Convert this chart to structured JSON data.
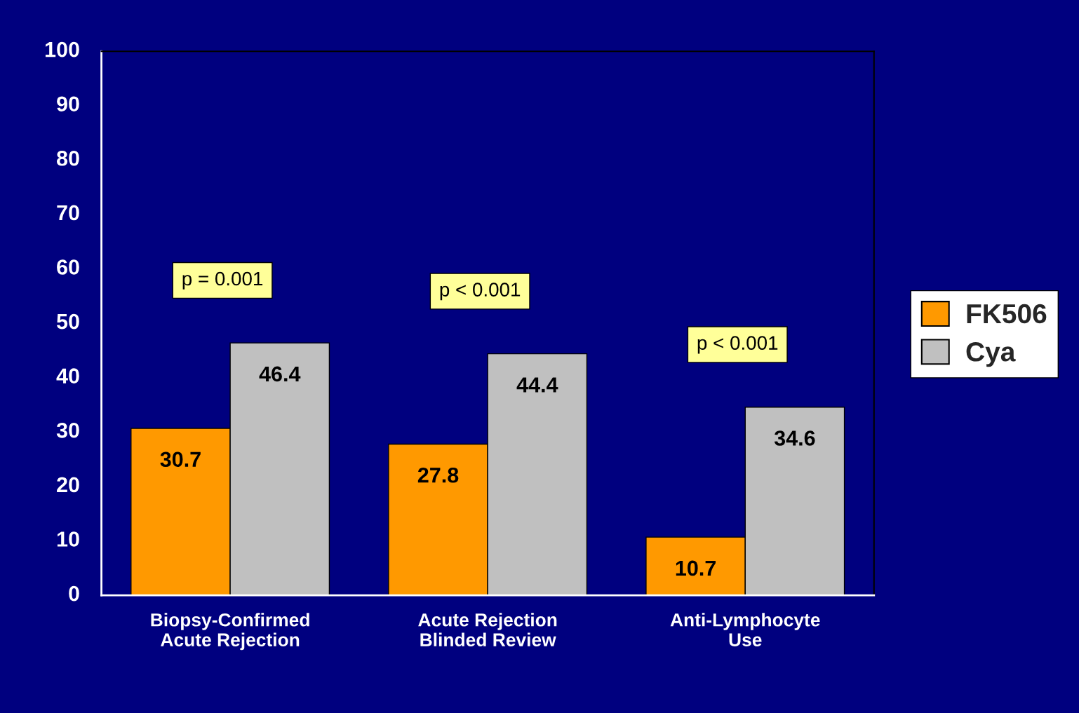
{
  "chart_data": {
    "type": "bar",
    "categories": [
      "Biopsy-Confirmed\nAcute Rejection",
      "Acute Rejection\nBlinded Review",
      "Anti-Lymphocyte\nUse"
    ],
    "series": [
      {
        "name": "FK506",
        "color": "#ff9900",
        "values": [
          30.7,
          27.8,
          10.7
        ]
      },
      {
        "name": "Cya",
        "color": "#c0c0c0",
        "values": [
          46.4,
          44.4,
          34.6
        ]
      }
    ],
    "ylim": [
      0,
      100
    ],
    "yticks": [
      0,
      10,
      20,
      30,
      40,
      50,
      60,
      70,
      80,
      90,
      100
    ],
    "grid": false,
    "legend": "right",
    "data_labels": true,
    "annotations": [
      "p = 0.001",
      "p < 0.001",
      "p < 0.001"
    ]
  }
}
